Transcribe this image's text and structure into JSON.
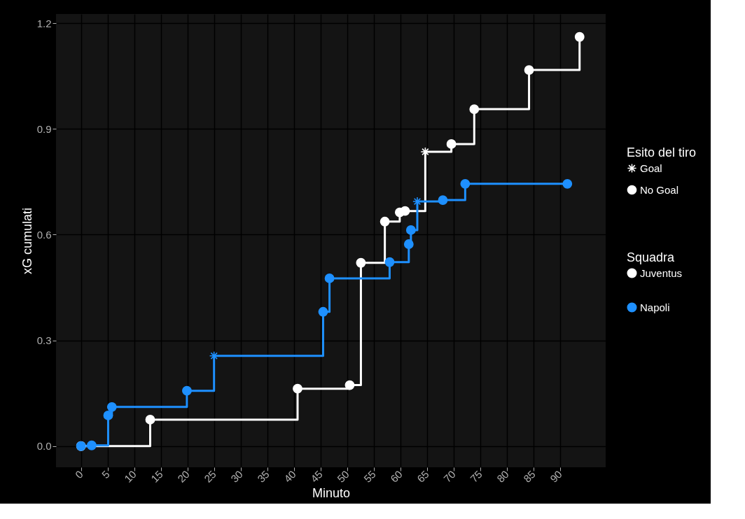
{
  "chart_data": {
    "type": "step",
    "xlabel": "Minuto",
    "ylabel": "xG cumulati",
    "legend_title": [
      "Esito del tiro",
      "Squadra"
    ],
    "xlim": [
      -4.7,
      98.6
    ],
    "ylim": [
      -0.06,
      1.226
    ],
    "xticks": [
      0,
      5,
      10,
      15,
      20,
      25,
      30,
      35,
      40,
      45,
      50,
      55,
      60,
      65,
      70,
      75,
      80,
      85,
      90
    ],
    "yticks": [
      {
        "value": 0,
        "label": "0.0"
      },
      0.3,
      0.6,
      0.9,
      1.2
    ],
    "grid": true,
    "legend": "right",
    "line_style": "solid",
    "series": [
      {
        "name": "Juventus",
        "color": "#ffffff",
        "x": [
          0,
          13,
          40.7,
          50.5,
          52.6,
          57.1,
          59.9,
          60.9,
          64.7,
          69.6,
          73.9,
          84.2,
          93.7
        ],
        "values": [
          0,
          0.075,
          0.163,
          0.173,
          0.52,
          0.637,
          0.663,
          0.667,
          0.835,
          0.857,
          0.956,
          1.067,
          1.161
        ]
      },
      {
        "name": "Napoli",
        "color": "#1e90ff",
        "x": [
          0,
          2,
          5.1,
          5.8,
          19.9,
          25,
          45.5,
          46.7,
          58,
          61.6,
          62,
          63.2,
          68,
          72.2,
          91.4
        ],
        "values": [
          0,
          0.002,
          0.087,
          0.111,
          0.157,
          0.256,
          0.381,
          0.476,
          0.522,
          0.573,
          0.613,
          0.694,
          0.698,
          0.744,
          0.744
        ]
      },
      {
        "name": "Goal",
        "type": "scatter",
        "marker": "cross",
        "x": [
          64.7,
          25,
          63.2
        ],
        "values": [
          0.835,
          0.256,
          0.694
        ],
        "colors": [
          "#ffffff",
          "#1e90ff",
          "#1e90ff"
        ]
      },
      {
        "name": "No Goal",
        "type": "scatter",
        "marker": "circle",
        "x": [
          0,
          13,
          40.7,
          50.5,
          52.6,
          57.1,
          59.9,
          60.9,
          69.6,
          73.9,
          84.2,
          93.7,
          0,
          2,
          5.1,
          5.8,
          19.9,
          45.5,
          46.7,
          58,
          61.6,
          62,
          68,
          72.2,
          91.4
        ],
        "values": [
          0,
          0.075,
          0.163,
          0.173,
          0.52,
          0.637,
          0.663,
          0.667,
          0.857,
          0.956,
          1.067,
          1.161,
          0,
          0.002,
          0.087,
          0.111,
          0.157,
          0.381,
          0.476,
          0.522,
          0.573,
          0.613,
          0.698,
          0.744,
          0.744
        ],
        "colors": [
          "#ffffff",
          "#ffffff",
          "#ffffff",
          "#ffffff",
          "#ffffff",
          "#ffffff",
          "#ffffff",
          "#ffffff",
          "#ffffff",
          "#ffffff",
          "#ffffff",
          "#ffffff",
          "#1e90ff",
          "#1e90ff",
          "#1e90ff",
          "#1e90ff",
          "#1e90ff",
          "#1e90ff",
          "#1e90ff",
          "#1e90ff",
          "#1e90ff",
          "#1e90ff",
          "#1e90ff",
          "#1e90ff",
          "#1e90ff"
        ]
      }
    ]
  }
}
